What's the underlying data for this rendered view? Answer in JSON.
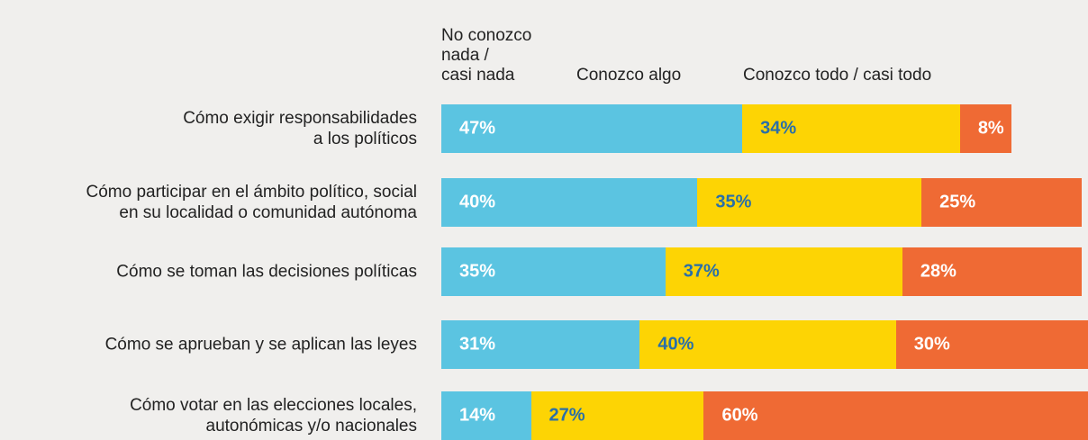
{
  "chart_data": {
    "type": "stacked-bar-horizontal",
    "categories": [
      "Cómo exigir responsabilidades\na los políticos",
      "Cómo participar en el ámbito político, social\nen su localidad o comunidad autónoma",
      "Cómo se toman las decisiones políticas",
      "Cómo se aprueban y se aplican las leyes",
      "Cómo votar en las elecciones locales,\nautonómicas y/o nacionales"
    ],
    "series": [
      {
        "name": "No conozco\nnada /\ncasi nada",
        "color": "#5bc4e1",
        "label_color": "#ffffff",
        "values": [
          47,
          40,
          35,
          31,
          14
        ],
        "value_labels": [
          "47%",
          "40%",
          "35%",
          "31%",
          "14%"
        ]
      },
      {
        "name": "Conozco algo",
        "color": "#fdd404",
        "label_color": "#2a6fa8",
        "values": [
          34,
          35,
          37,
          40,
          27
        ],
        "value_labels": [
          "34%",
          "35%",
          "37%",
          "40%",
          "27%"
        ]
      },
      {
        "name": "Conozco todo / casi todo",
        "color": "#ef6a34",
        "label_color": "#ffffff",
        "values": [
          8,
          25,
          28,
          30,
          60
        ],
        "value_labels": [
          "8%",
          "25%",
          "28%",
          "30%",
          "60%"
        ]
      }
    ]
  }
}
